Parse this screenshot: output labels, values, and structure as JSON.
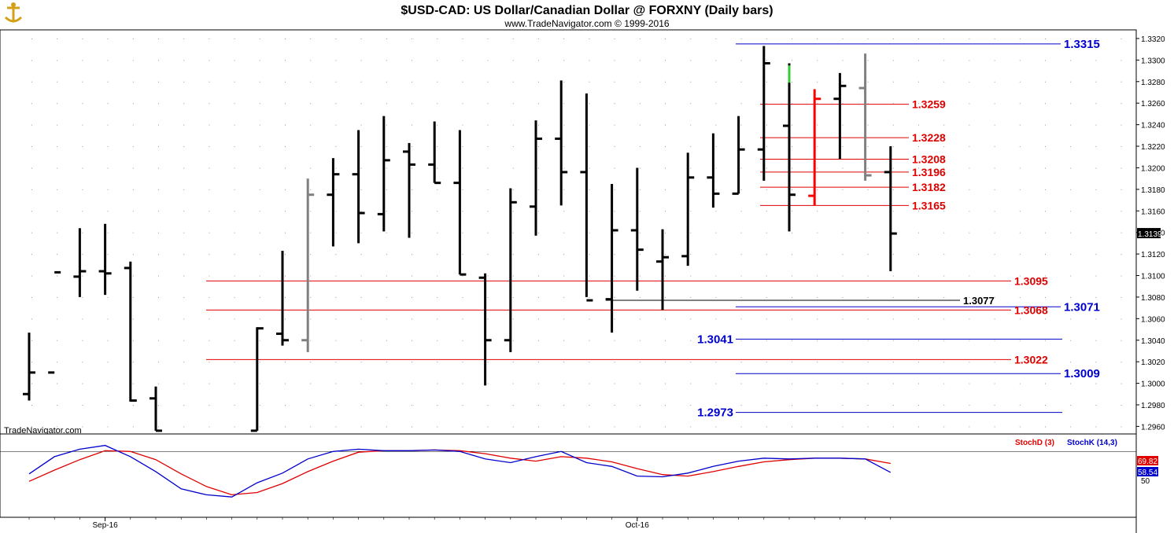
{
  "chart_data": {
    "type": "ohlc",
    "title": "$USD-CAD:  US Dollar/Canadian Dollar @ FORXNY  (Daily bars)",
    "subtitle": "www.TradeNavigator.com © 1999-2016",
    "watermark": "TradeNavigator.com",
    "price_axis": {
      "ylim": [
        1.2953,
        1.3328
      ],
      "ticks": [
        "1.3320",
        "1.3300",
        "1.3280",
        "1.3260",
        "1.3240",
        "1.3220",
        "1.3200",
        "1.3180",
        "1.3160",
        "1.3140",
        "1.3120",
        "1.3100",
        "1.3080",
        "1.3060",
        "1.3040",
        "1.3020",
        "1.3000",
        "1.2980",
        "1.2960"
      ],
      "last_price": "1.3139"
    },
    "date_axis": {
      "labels": [
        "Sep-16",
        "Oct-16"
      ]
    },
    "bars": [
      {
        "high": 1.3047,
        "low": 1.2984,
        "open": 1.299,
        "close": 1.301,
        "color": "#000000"
      },
      {
        "high": 1.301,
        "low": 1.301,
        "open": 1.301,
        "close": 1.3103,
        "color": "#000000"
      },
      {
        "high": 1.3144,
        "low": 1.308,
        "open": 1.3099,
        "close": 1.3104,
        "color": "#000000"
      },
      {
        "high": 1.3148,
        "low": 1.3082,
        "open": 1.3104,
        "close": 1.3102,
        "color": "#000000"
      },
      {
        "high": 1.3113,
        "low": 1.2983,
        "open": 1.3107,
        "close": 1.2984,
        "color": "#000000"
      },
      {
        "high": 1.2997,
        "low": 1.2956,
        "open": 1.2986,
        "close": 1.2956,
        "color": "#000000"
      },
      {
        "high": null,
        "low": null,
        "open": null,
        "close": null,
        "color": "#000000"
      },
      {
        "high": null,
        "low": null,
        "open": null,
        "close": null,
        "color": "#000000"
      },
      {
        "high": null,
        "low": null,
        "open": null,
        "close": null,
        "color": "#000000"
      },
      {
        "high": 1.3052,
        "low": 1.2956,
        "open": 1.2956,
        "close": 1.3051,
        "color": "#000000"
      },
      {
        "high": 1.3123,
        "low": 1.3035,
        "open": 1.3046,
        "close": 1.304,
        "color": "#000000"
      },
      {
        "high": 1.319,
        "low": 1.3029,
        "open": 1.304,
        "close": 1.3175,
        "color": "#808080"
      },
      {
        "high": 1.3209,
        "low": 1.3127,
        "open": 1.3175,
        "close": 1.3194,
        "color": "#000000"
      },
      {
        "high": 1.3235,
        "low": 1.313,
        "open": 1.3194,
        "close": 1.3158,
        "color": "#000000"
      },
      {
        "high": 1.3248,
        "low": 1.3141,
        "open": 1.3157,
        "close": 1.3207,
        "color": "#000000"
      },
      {
        "high": 1.3223,
        "low": 1.3135,
        "open": 1.3215,
        "close": 1.3203,
        "color": "#000000"
      },
      {
        "high": 1.3243,
        "low": 1.3186,
        "open": 1.3203,
        "close": 1.3186,
        "color": "#000000"
      },
      {
        "high": 1.3235,
        "low": 1.3101,
        "open": 1.3186,
        "close": 1.3101,
        "color": "#000000"
      },
      {
        "high": 1.3102,
        "low": 1.2998,
        "open": 1.3098,
        "close": 1.304,
        "color": "#000000"
      },
      {
        "high": 1.3181,
        "low": 1.3029,
        "open": 1.304,
        "close": 1.3168,
        "color": "#000000"
      },
      {
        "high": 1.3244,
        "low": 1.3137,
        "open": 1.3164,
        "close": 1.3227,
        "color": "#000000"
      },
      {
        "high": 1.3281,
        "low": 1.3165,
        "open": 1.3227,
        "close": 1.3196,
        "color": "#000000"
      },
      {
        "high": 1.3269,
        "low": 1.308,
        "open": 1.3196,
        "close": 1.3077,
        "color": "#000000"
      },
      {
        "high": 1.3185,
        "low": 1.3047,
        "open": 1.3078,
        "close": 1.3142,
        "color": "#000000"
      },
      {
        "high": 1.32,
        "low": 1.3086,
        "open": 1.3142,
        "close": 1.3124,
        "color": "#000000"
      },
      {
        "high": 1.3143,
        "low": 1.3068,
        "open": 1.3113,
        "close": 1.3117,
        "color": "#000000"
      },
      {
        "high": 1.3214,
        "low": 1.3109,
        "open": 1.3118,
        "close": 1.3191,
        "color": "#000000"
      },
      {
        "high": 1.3232,
        "low": 1.3163,
        "open": 1.3191,
        "close": 1.3176,
        "color": "#000000"
      },
      {
        "high": 1.3248,
        "low": 1.3176,
        "open": 1.3176,
        "close": 1.3217,
        "color": "#000000"
      },
      {
        "high": 1.3313,
        "low": 1.3188,
        "open": 1.3217,
        "close": 1.3297,
        "color": "#000000"
      },
      {
        "high": 1.3297,
        "low": 1.3141,
        "open": 1.3239,
        "close": 1.3175,
        "color": "#000000"
      },
      {
        "high": 1.3273,
        "low": 1.3165,
        "open": 1.3174,
        "close": 1.3264,
        "color": "#ff0000"
      },
      {
        "high": 1.3288,
        "low": 1.3208,
        "open": 1.3264,
        "close": 1.3276,
        "color": "#000000"
      },
      {
        "high": 1.3306,
        "low": 1.3188,
        "open": 1.3274,
        "close": 1.3193,
        "color": "#808080"
      },
      {
        "high": 1.322,
        "low": 1.3104,
        "open": 1.3196,
        "close": 1.3139,
        "color": "#000000"
      }
    ],
    "bar_highlights": [
      {
        "bar": 30,
        "from": 1.3279,
        "to": 1.3295,
        "color": "#33cc33"
      }
    ],
    "levels": [
      {
        "value": 1.3315,
        "label": "1.3315",
        "color": "#0000cc",
        "side": "right"
      },
      {
        "value": 1.3259,
        "label": "1.3259",
        "color": "#e00000",
        "side": "mid"
      },
      {
        "value": 1.3228,
        "label": "1.3228",
        "color": "#e00000",
        "side": "mid"
      },
      {
        "value": 1.3208,
        "label": "1.3208",
        "color": "#e00000",
        "side": "mid"
      },
      {
        "value": 1.3196,
        "label": "1.3196",
        "color": "#e00000",
        "side": "mid"
      },
      {
        "value": 1.3182,
        "label": "1.3182",
        "color": "#e00000",
        "side": "mid"
      },
      {
        "value": 1.3165,
        "label": "1.3165",
        "color": "#e00000",
        "side": "mid"
      },
      {
        "value": 1.3095,
        "label": "1.3095",
        "color": "#e00000",
        "side": "long"
      },
      {
        "value": 1.3077,
        "label": "1.3077",
        "color": "#000000",
        "side": "black"
      },
      {
        "value": 1.3071,
        "label": "1.3071",
        "color": "#0000cc",
        "side": "right"
      },
      {
        "value": 1.3068,
        "label": "1.3068",
        "color": "#e00000",
        "side": "long"
      },
      {
        "value": 1.3041,
        "label": "1.3041",
        "color": "#0000cc",
        "side": "left"
      },
      {
        "value": 1.3022,
        "label": "1.3022",
        "color": "#e00000",
        "side": "long"
      },
      {
        "value": 1.3009,
        "label": "1.3009",
        "color": "#0000cc",
        "side": "right"
      },
      {
        "value": 1.2973,
        "label": "1.2973",
        "color": "#0000cc",
        "side": "left"
      }
    ],
    "stochastic": {
      "legend": [
        {
          "name": "StochD (3)",
          "color": "#e00000"
        },
        {
          "name": "StochK (14,3)",
          "color": "#0000cc"
        }
      ],
      "ylim": [
        0,
        100
      ],
      "reference": "50",
      "last_d": "69.82",
      "last_k": "58.54",
      "k": [
        55,
        78,
        88,
        93,
        78,
        58,
        35,
        27,
        24,
        43,
        56,
        75,
        85,
        88,
        86,
        86,
        87,
        85,
        75,
        70,
        78,
        85,
        70,
        65,
        52,
        51,
        56,
        65,
        72,
        76,
        75,
        76,
        76,
        75,
        57
      ],
      "d": [
        45,
        60,
        74,
        86,
        85,
        74,
        55,
        38,
        27,
        30,
        42,
        58,
        72,
        84,
        86,
        86,
        87,
        86,
        82,
        76,
        72,
        78,
        76,
        71,
        62,
        54,
        52,
        58,
        65,
        71,
        74,
        76,
        76,
        75,
        69
      ]
    }
  }
}
